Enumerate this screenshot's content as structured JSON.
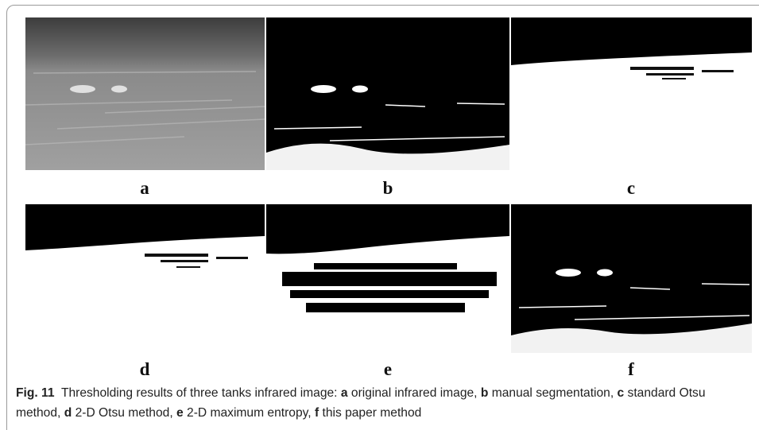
{
  "figure": {
    "panels": [
      "a",
      "b",
      "c",
      "d",
      "e",
      "f"
    ],
    "caption": {
      "label": "Fig. 11",
      "intro": "Thresholding results of three tanks infrared image:",
      "items": [
        {
          "key": "a",
          "text": "original infrared image,"
        },
        {
          "key": "b",
          "text": "manual segmentation,"
        },
        {
          "key": "c",
          "text": "standard Otsu method,"
        },
        {
          "key": "d",
          "text": "2-D Otsu method,"
        },
        {
          "key": "e",
          "text": "2-D maximum entropy,"
        },
        {
          "key": "f",
          "text": "this paper method"
        }
      ]
    }
  }
}
